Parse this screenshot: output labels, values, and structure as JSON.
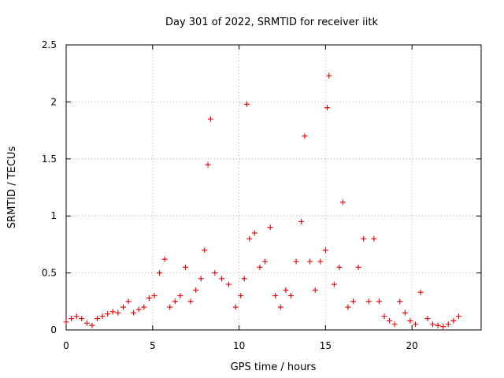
{
  "chart_data": {
    "type": "scatter",
    "title": "Day 301 of 2022, SRMTID for receiver iitk",
    "xlabel": "GPS time / hours",
    "ylabel": "SRMTID / TECUs",
    "xlim": [
      0,
      24
    ],
    "ylim": [
      0,
      2.5
    ],
    "xticks": [
      0,
      5,
      10,
      15,
      20
    ],
    "yticks": [
      0,
      0.5,
      1,
      1.5,
      2,
      2.5
    ],
    "xtick_labels": [
      "0",
      "5",
      "10",
      "15",
      "20"
    ],
    "ytick_labels": [
      "0",
      "0.5",
      "1",
      "1.5",
      "2",
      "2.5"
    ],
    "grid": true,
    "marker": "+",
    "series": [
      {
        "name": "SRMTID",
        "color": "#e00000",
        "x": [
          0.0,
          0.3,
          0.6,
          0.9,
          1.2,
          1.5,
          1.8,
          2.1,
          2.4,
          2.7,
          3.0,
          3.3,
          3.6,
          3.9,
          4.2,
          4.5,
          4.8,
          5.1,
          5.4,
          5.7,
          6.0,
          6.3,
          6.6,
          6.9,
          7.2,
          7.5,
          7.8,
          8.0,
          8.2,
          8.35,
          8.6,
          9.0,
          9.4,
          9.8,
          10.1,
          10.3,
          10.45,
          10.6,
          10.9,
          11.2,
          11.5,
          11.8,
          12.1,
          12.4,
          12.7,
          13.0,
          13.3,
          13.6,
          13.8,
          14.1,
          14.4,
          14.7,
          15.0,
          15.1,
          15.2,
          15.5,
          15.8,
          16.0,
          16.3,
          16.6,
          16.9,
          17.2,
          17.5,
          17.8,
          18.1,
          18.4,
          18.7,
          19.0,
          19.3,
          19.6,
          19.9,
          20.2,
          20.5,
          20.9,
          21.2,
          21.5,
          21.8,
          22.1,
          22.4,
          22.7
        ],
        "y": [
          0.07,
          0.1,
          0.12,
          0.1,
          0.06,
          0.04,
          0.1,
          0.12,
          0.14,
          0.16,
          0.15,
          0.2,
          0.25,
          0.15,
          0.18,
          0.2,
          0.28,
          0.3,
          0.5,
          0.62,
          0.2,
          0.25,
          0.3,
          0.55,
          0.25,
          0.35,
          0.45,
          0.7,
          1.45,
          1.85,
          0.5,
          0.45,
          0.4,
          0.2,
          0.3,
          0.45,
          1.98,
          0.8,
          0.85,
          0.55,
          0.6,
          0.9,
          0.3,
          0.2,
          0.35,
          0.3,
          0.6,
          0.95,
          1.7,
          0.6,
          0.35,
          0.6,
          0.7,
          1.95,
          2.23,
          0.4,
          0.55,
          1.12,
          0.2,
          0.25,
          0.55,
          0.8,
          0.25,
          0.8,
          0.25,
          0.12,
          0.08,
          0.05,
          0.25,
          0.15,
          0.08,
          0.05,
          0.33,
          0.1,
          0.05,
          0.04,
          0.03,
          0.05,
          0.08,
          0.12
        ]
      }
    ]
  }
}
